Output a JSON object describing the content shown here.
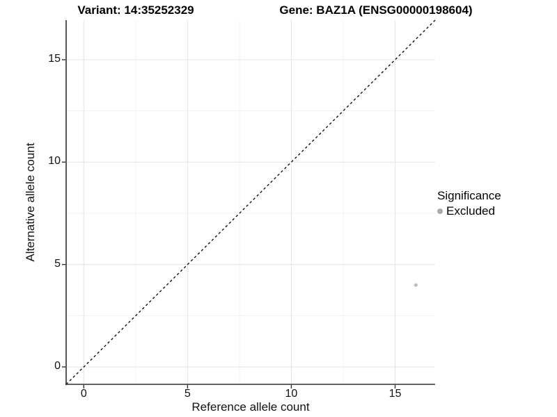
{
  "figure": {
    "titles": {
      "left": "Variant: 14:35252329",
      "right": "Gene: BAZ1A (ENSG00000198604)"
    }
  },
  "chart_data": {
    "type": "scatter",
    "title_left": "Variant: 14:35252329",
    "title_right": "Gene: BAZ1A (ENSG00000198604)",
    "xlabel": "Reference allele count",
    "ylabel": "Alternative allele count",
    "xlim": [
      -0.85,
      16.93
    ],
    "ylim": [
      -0.85,
      16.93
    ],
    "xticks": [
      0,
      5,
      10,
      15
    ],
    "yticks": [
      0,
      5,
      10,
      15
    ],
    "xminor": [
      2.5,
      7.5,
      12.5
    ],
    "yminor": [
      2.5,
      7.5,
      12.5
    ],
    "grid": true,
    "identity_line": {
      "style": "dashed",
      "slope": 1,
      "intercept": 0
    },
    "series": [
      {
        "name": "Excluded",
        "color": "#BEBEBE",
        "points": [
          {
            "x": 16,
            "y": 4
          }
        ]
      }
    ],
    "legend": {
      "title": "Significance",
      "position": "right",
      "entries": [
        {
          "label": "Excluded",
          "color": "#ACACAC"
        }
      ]
    }
  },
  "colors": {
    "background": "#FFFFFF",
    "grid_major": "#E3E3E3",
    "grid_minor": "#F2F2F2",
    "axis_line": "#2E2E2E",
    "tick_text": "#111111",
    "identity_line": "#000000"
  }
}
